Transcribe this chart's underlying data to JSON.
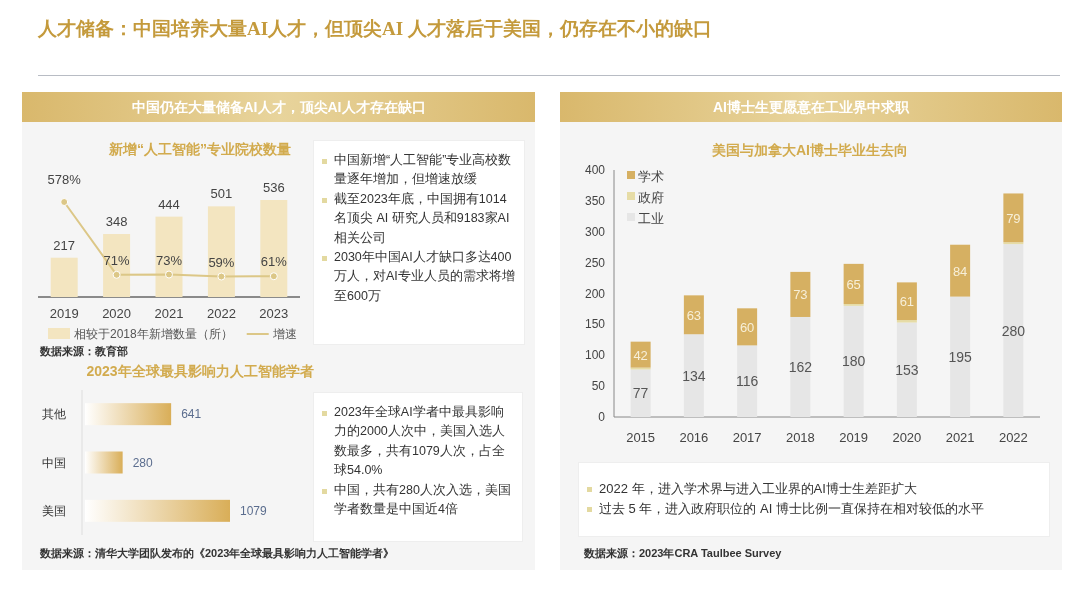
{
  "chart_data": [
    {
      "type": "other",
      "title": "人才储备：中国培养大量AI人才，但顶尖AI  人才落后于美国，仍存在不小的缺口"
    },
    {
      "type": "other",
      "title": "中国仍在大量储备AI人才，顶尖AI人才存在缺口"
    },
    {
      "type": "bar",
      "title": "新增“人工智能”专业院校数量",
      "categories": [
        "2019",
        "2020",
        "2021",
        "2022",
        "2023"
      ],
      "series": [
        {
          "name": "相较于2018年新增数量（所）",
          "color": "#f3e5c0",
          "values": [
            217,
            348,
            444,
            501,
            536
          ]
        },
        {
          "name": "增速",
          "type": "line",
          "axis": "y2",
          "color": "#dcc787",
          "values": [
            578,
            71,
            73,
            59,
            61
          ],
          "value_labels": [
            "578%",
            "71%",
            "73%",
            "59%",
            "61%"
          ]
        }
      ],
      "data_labels": true,
      "legend": "bottom",
      "marker": "circle",
      "annotations": [
        "数据来源：教育部"
      ]
    },
    {
      "type": "other",
      "annotations": [
        "中国新增“人工智能”专业高校数量逐年增加，但增速放缓",
        "截至2023年底，中国拥有1014名顶尖 AI 研究人员和9183家AI 相关公司",
        "2030年中国AI人才缺口多达400万人，对AI专业人员的需求将增至600万"
      ]
    },
    {
      "type": "bar",
      "orientation": "horizontal",
      "title": "2023年全球最具影响力人工智能学者",
      "categories": [
        "其他",
        "中国",
        "美国"
      ],
      "values": [
        641,
        280,
        1079
      ],
      "color": "#d9ae58",
      "data_labels": true,
      "annotations": [
        "数据来源：清华大学团队发布的《2023年全球最具影响力人工智能学者》"
      ]
    },
    {
      "type": "other",
      "annotations": [
        "2023年全球AI学者中最具影响力的2000人次中，美国入选人数最多，共有1079人次，占全球54.0%",
        "中国，共有280人次入选，美国学者数量是中国近4倍"
      ]
    },
    {
      "type": "other",
      "title": "AI博士生更愿意在工业界中求职"
    },
    {
      "type": "bar",
      "stacked": true,
      "title": "美国与加拿大AI博士毕业生去向",
      "categories": [
        "2015",
        "2016",
        "2017",
        "2018",
        "2019",
        "2020",
        "2021",
        "2022"
      ],
      "series": [
        {
          "name": "工业",
          "color": "#e6e6e6",
          "values": [
            77,
            134,
            116,
            162,
            180,
            153,
            195,
            280
          ],
          "value_labels": [
            "77",
            "134",
            "116",
            "162",
            "180",
            "153",
            "195",
            "280"
          ]
        },
        {
          "name": "政府",
          "color": "#e6dca6",
          "values": [
            3,
            null,
            null,
            null,
            3,
            4,
            null,
            3
          ]
        },
        {
          "name": "学术",
          "color": "#d6b062",
          "values": [
            42,
            63,
            60,
            73,
            65,
            61,
            84,
            79
          ],
          "value_labels": [
            "42",
            "63",
            "60",
            "73",
            "65",
            "61",
            "84",
            "79"
          ]
        }
      ],
      "ylim": [
        0,
        400
      ],
      "yticks": [
        0,
        50,
        100,
        150,
        200,
        250,
        300,
        350,
        400
      ],
      "legend": "top left"
    },
    {
      "type": "other",
      "annotations": [
        "2022 年，进入学术界与进入工业界的AI博士生差距扩大",
        "过去 5 年，进入政府职位的 AI 博士比例一直保持在相对较低的水平",
        "数据来源：2023年CRA Taulbee Survey"
      ]
    }
  ]
}
